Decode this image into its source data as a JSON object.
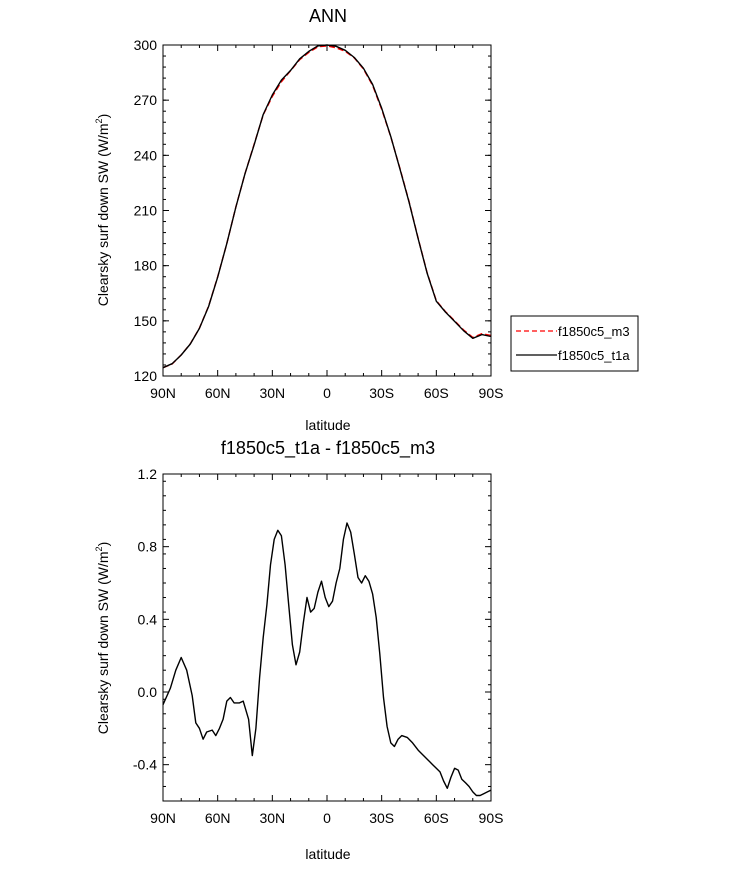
{
  "chart_data": [
    {
      "type": "line",
      "title": "ANN",
      "xlabel": "latitude",
      "ylabel": "Clearsky surf down SW (W/m",
      "ylabel_sup": "2",
      "ylabel_close": ")",
      "xlim": [
        90,
        -90
      ],
      "ylim": [
        120,
        300
      ],
      "x_ticks": [
        90,
        60,
        30,
        0,
        -30,
        -60,
        -90
      ],
      "x_tick_labels": [
        "90N",
        "60N",
        "30N",
        "0",
        "30S",
        "60S",
        "90S"
      ],
      "y_ticks": [
        120,
        150,
        180,
        210,
        240,
        270,
        300
      ],
      "y_tick_labels": [
        "120",
        "150",
        "180",
        "210",
        "240",
        "270",
        "300"
      ],
      "legend_position": "right",
      "series": [
        {
          "name": "f1850c5_m3",
          "color": "#ff0000",
          "dash": "dashed",
          "x": [
            90,
            85,
            80,
            75,
            70,
            65,
            60,
            55,
            50,
            45,
            40,
            35,
            30,
            25,
            20,
            15,
            10,
            5,
            0,
            -5,
            -10,
            -15,
            -20,
            -25,
            -30,
            -35,
            -40,
            -45,
            -50,
            -55,
            -60,
            -65,
            -70,
            -75,
            -80,
            -85,
            -90
          ],
          "y": [
            124.5,
            126.5,
            131.5,
            137.5,
            146,
            158,
            174,
            192,
            212,
            230,
            246,
            262,
            272,
            280,
            286,
            292,
            296,
            299,
            299.5,
            298.5,
            296.5,
            293,
            287,
            278,
            265,
            250,
            233,
            215,
            195,
            176,
            161,
            155,
            150,
            145,
            141,
            143,
            142
          ]
        },
        {
          "name": "f1850c5_t1a",
          "color": "#000000",
          "dash": "solid",
          "x": [
            90,
            85,
            80,
            75,
            70,
            65,
            60,
            55,
            50,
            45,
            40,
            35,
            30,
            25,
            20,
            15,
            10,
            5,
            0,
            -5,
            -10,
            -15,
            -20,
            -25,
            -30,
            -35,
            -40,
            -45,
            -50,
            -55,
            -60,
            -65,
            -70,
            -75,
            -80,
            -85,
            -90
          ],
          "y": [
            124.5,
            126.7,
            131.4,
            137.4,
            145.9,
            157.8,
            173.8,
            192,
            211.9,
            230,
            245.7,
            262.2,
            272.8,
            280.9,
            286.2,
            292.5,
            296.5,
            299.5,
            300,
            299.3,
            297.1,
            293.2,
            287.4,
            278.6,
            265.6,
            250.2,
            232.7,
            214.7,
            194.8,
            175.8,
            160.7,
            154.8,
            149.7,
            144.6,
            140.5,
            142.5,
            141.5
          ]
        }
      ]
    },
    {
      "type": "line",
      "title": "f1850c5_t1a - f1850c5_m3",
      "xlabel": "latitude",
      "ylabel": "Clearsky surf down SW (W/m",
      "ylabel_sup": "2",
      "ylabel_close": ")",
      "xlim": [
        90,
        -90
      ],
      "ylim": [
        -0.6,
        1.2
      ],
      "x_ticks": [
        90,
        60,
        30,
        0,
        -30,
        -60,
        -90
      ],
      "x_tick_labels": [
        "90N",
        "60N",
        "30N",
        "0",
        "30S",
        "60S",
        "90S"
      ],
      "y_ticks": [
        -0.4,
        0.0,
        0.4,
        0.8,
        1.2
      ],
      "y_tick_labels": [
        "-0.4",
        "0.0",
        "0.4",
        "0.8",
        "1.2"
      ],
      "series": [
        {
          "name": "f1850c5_t1a - f1850c5_m3",
          "color": "#000000",
          "dash": "solid",
          "x": [
            90,
            86,
            83,
            80,
            77,
            74,
            72,
            70,
            68,
            66,
            63,
            61,
            59,
            57,
            55,
            53,
            51,
            48,
            46,
            43,
            41,
            39,
            37,
            35,
            33,
            31,
            29,
            27,
            25,
            23,
            21,
            19,
            17,
            15,
            13,
            11,
            9,
            7,
            5,
            3,
            1,
            -1,
            -3,
            -5,
            -7,
            -9,
            -11,
            -13,
            -15,
            -17,
            -19,
            -21,
            -23,
            -25,
            -27,
            -29,
            -31,
            -33,
            -35,
            -37,
            -39,
            -41,
            -44,
            -47,
            -50,
            -53,
            -56,
            -58,
            -60,
            -62,
            -64,
            -66,
            -68,
            -70,
            -72,
            -74,
            -76,
            -78,
            -80,
            -82,
            -84,
            -86,
            -88,
            -90
          ],
          "y": [
            -0.07,
            0.02,
            0.12,
            0.19,
            0.12,
            -0.02,
            -0.17,
            -0.2,
            -0.26,
            -0.22,
            -0.21,
            -0.24,
            -0.2,
            -0.15,
            -0.05,
            -0.03,
            -0.06,
            -0.06,
            -0.05,
            -0.15,
            -0.35,
            -0.2,
            0.08,
            0.3,
            0.48,
            0.7,
            0.84,
            0.89,
            0.86,
            0.7,
            0.48,
            0.26,
            0.15,
            0.22,
            0.38,
            0.52,
            0.44,
            0.46,
            0.55,
            0.61,
            0.52,
            0.47,
            0.5,
            0.6,
            0.68,
            0.84,
            0.93,
            0.88,
            0.76,
            0.63,
            0.6,
            0.64,
            0.61,
            0.54,
            0.41,
            0.21,
            -0.03,
            -0.19,
            -0.28,
            -0.3,
            -0.26,
            -0.24,
            -0.25,
            -0.28,
            -0.32,
            -0.35,
            -0.38,
            -0.4,
            -0.42,
            -0.44,
            -0.49,
            -0.53,
            -0.47,
            -0.42,
            -0.43,
            -0.48,
            -0.5,
            -0.52,
            -0.55,
            -0.57,
            -0.57,
            -0.56,
            -0.55,
            -0.54
          ]
        }
      ]
    }
  ]
}
